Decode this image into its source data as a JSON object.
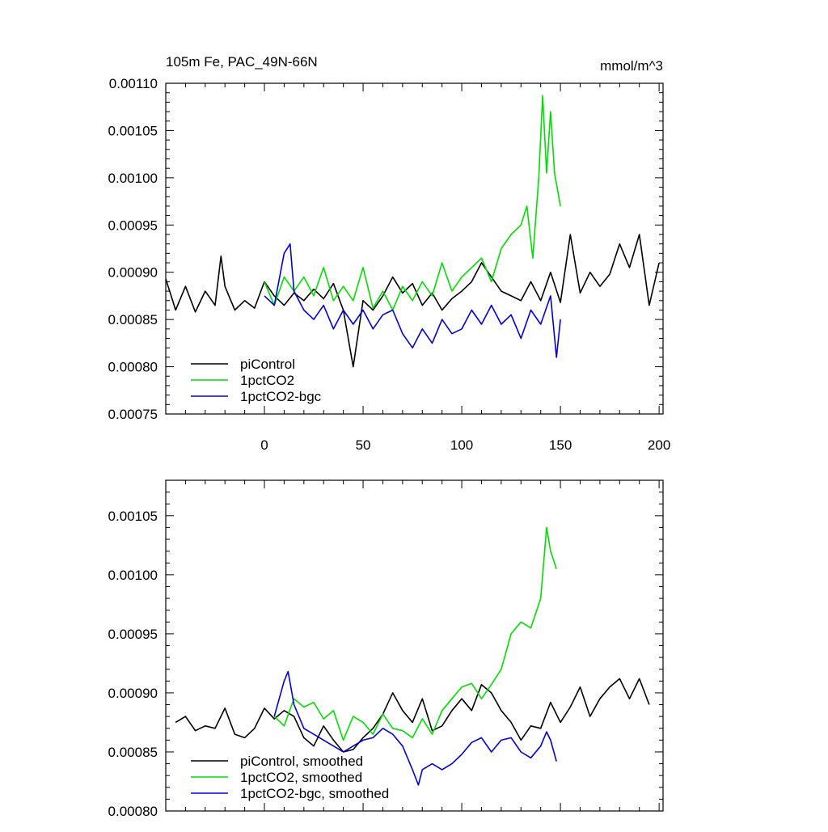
{
  "chart_data": [
    {
      "type": "line",
      "title": "105m Fe, PAC_49N-66N",
      "units": "mmol/m^3",
      "xlabel": "",
      "ylabel": "",
      "xlim": [
        -50,
        202
      ],
      "ylim": [
        0.00075,
        0.0011
      ],
      "xticks": [
        0,
        50,
        100,
        150,
        200
      ],
      "xtick_labels": [
        "0",
        "50",
        "100",
        "150",
        "200"
      ],
      "yticks": [
        0.00075,
        0.0008,
        0.00085,
        0.0009,
        0.00095,
        0.001,
        0.00105,
        0.0011
      ],
      "ytick_labels": [
        "0.00075",
        "0.00080",
        "0.00085",
        "0.00090",
        "0.00095",
        "0.00100",
        "0.00105",
        "0.00110"
      ],
      "legend_position": "bottom-left",
      "series": [
        {
          "name": "piControl",
          "color": "#000000",
          "x": [
            -50,
            -45,
            -40,
            -35,
            -30,
            -25,
            -22,
            -20,
            -15,
            -10,
            -5,
            0,
            5,
            10,
            15,
            20,
            25,
            30,
            35,
            40,
            45,
            50,
            55,
            60,
            65,
            70,
            75,
            80,
            85,
            90,
            95,
            100,
            105,
            110,
            115,
            120,
            125,
            130,
            135,
            140,
            145,
            150,
            155,
            160,
            165,
            170,
            175,
            180,
            185,
            190,
            195,
            200
          ],
          "y": [
            0.000893,
            0.00086,
            0.000885,
            0.000858,
            0.00088,
            0.000865,
            0.000917,
            0.000885,
            0.00086,
            0.00087,
            0.000862,
            0.00089,
            0.000875,
            0.000865,
            0.000878,
            0.00087,
            0.000882,
            0.000872,
            0.000888,
            0.00086,
            0.0008,
            0.00087,
            0.00086,
            0.000875,
            0.000895,
            0.000878,
            0.000888,
            0.000865,
            0.000878,
            0.00086,
            0.000872,
            0.00088,
            0.00089,
            0.00091,
            0.000895,
            0.00088,
            0.000875,
            0.00087,
            0.00089,
            0.00087,
            0.0009,
            0.000868,
            0.00094,
            0.000878,
            0.0009,
            0.000885,
            0.000898,
            0.00093,
            0.000905,
            0.00094,
            0.000865,
            0.00091
          ]
        },
        {
          "name": "1pctCO2",
          "color": "#00dd00",
          "x": [
            0,
            5,
            10,
            15,
            20,
            25,
            30,
            35,
            40,
            45,
            50,
            55,
            60,
            65,
            70,
            75,
            80,
            85,
            90,
            95,
            100,
            105,
            110,
            115,
            120,
            125,
            130,
            133,
            136,
            139,
            141,
            143,
            145,
            147,
            150
          ],
          "y": [
            0.00089,
            0.000865,
            0.000895,
            0.00088,
            0.000895,
            0.000875,
            0.000905,
            0.00087,
            0.000885,
            0.00087,
            0.000905,
            0.000862,
            0.00088,
            0.00086,
            0.000885,
            0.00087,
            0.00089,
            0.000875,
            0.00091,
            0.00088,
            0.000895,
            0.000905,
            0.000915,
            0.00089,
            0.000925,
            0.00094,
            0.00095,
            0.00097,
            0.000915,
            0.001,
            0.001087,
            0.001005,
            0.00107,
            0.001005,
            0.00097
          ]
        },
        {
          "name": "1pctCO2-bgc",
          "color": "#0000dd",
          "x": [
            0,
            5,
            10,
            13,
            15,
            20,
            25,
            30,
            35,
            40,
            45,
            50,
            55,
            60,
            65,
            70,
            75,
            80,
            85,
            90,
            95,
            100,
            105,
            110,
            115,
            120,
            125,
            130,
            135,
            140,
            145,
            148,
            150
          ],
          "y": [
            0.000875,
            0.000865,
            0.00092,
            0.00093,
            0.00088,
            0.00086,
            0.00085,
            0.000865,
            0.00084,
            0.00086,
            0.000845,
            0.00086,
            0.00084,
            0.000855,
            0.00086,
            0.000835,
            0.00082,
            0.00084,
            0.000825,
            0.00085,
            0.000835,
            0.00084,
            0.00086,
            0.000845,
            0.000865,
            0.000845,
            0.000855,
            0.00083,
            0.00086,
            0.000845,
            0.000875,
            0.00081,
            0.00085
          ]
        }
      ]
    },
    {
      "type": "line",
      "title": "",
      "xlabel": "",
      "ylabel": "",
      "xlim": [
        -50,
        202
      ],
      "ylim": [
        0.0008,
        0.00108
      ],
      "xticks": [
        0,
        50,
        100,
        150,
        200
      ],
      "yticks": [
        0.0008,
        0.00085,
        0.0009,
        0.00095,
        0.001,
        0.00105
      ],
      "ytick_labels": [
        "0.00080",
        "0.00085",
        "0.00090",
        "0.00095",
        "0.00100",
        "0.00105"
      ],
      "legend_position": "bottom-left",
      "series": [
        {
          "name": "piControl, smoothed",
          "color": "#000000",
          "x": [
            -45,
            -40,
            -35,
            -30,
            -25,
            -20,
            -15,
            -10,
            -5,
            0,
            5,
            10,
            15,
            20,
            25,
            30,
            35,
            40,
            45,
            50,
            55,
            60,
            65,
            70,
            75,
            80,
            85,
            90,
            95,
            100,
            105,
            110,
            115,
            120,
            125,
            130,
            135,
            140,
            145,
            150,
            155,
            160,
            165,
            170,
            175,
            180,
            185,
            190,
            195
          ],
          "y": [
            0.000875,
            0.00088,
            0.000868,
            0.000872,
            0.00087,
            0.000887,
            0.000865,
            0.000862,
            0.00087,
            0.000887,
            0.000878,
            0.000885,
            0.00088,
            0.000862,
            0.000855,
            0.000872,
            0.00086,
            0.00085,
            0.000852,
            0.000862,
            0.00087,
            0.000882,
            0.0009,
            0.000885,
            0.000875,
            0.000895,
            0.000868,
            0.000872,
            0.000885,
            0.000895,
            0.000885,
            0.000907,
            0.0009,
            0.000885,
            0.000875,
            0.00086,
            0.000872,
            0.00087,
            0.000892,
            0.000875,
            0.000888,
            0.000905,
            0.00088,
            0.000895,
            0.000905,
            0.000912,
            0.000895,
            0.000912,
            0.00089
          ]
        },
        {
          "name": "1pctCO2, smoothed",
          "color": "#00dd00",
          "x": [
            5,
            10,
            15,
            20,
            25,
            30,
            35,
            40,
            45,
            50,
            55,
            60,
            65,
            70,
            75,
            80,
            85,
            90,
            95,
            100,
            105,
            110,
            115,
            120,
            125,
            130,
            135,
            140,
            143,
            145,
            148
          ],
          "y": [
            0.00088,
            0.000872,
            0.000895,
            0.000888,
            0.000892,
            0.000878,
            0.000885,
            0.00086,
            0.00088,
            0.000875,
            0.000865,
            0.000882,
            0.00087,
            0.000868,
            0.000862,
            0.000878,
            0.000865,
            0.000885,
            0.000895,
            0.000905,
            0.000908,
            0.000895,
            0.000907,
            0.00092,
            0.00095,
            0.00096,
            0.000955,
            0.00098,
            0.00104,
            0.00102,
            0.001005
          ]
        },
        {
          "name": "1pctCO2-bgc, smoothed",
          "color": "#0000dd",
          "x": [
            5,
            10,
            12,
            15,
            20,
            25,
            30,
            35,
            40,
            45,
            50,
            55,
            60,
            65,
            70,
            75,
            78,
            80,
            85,
            90,
            95,
            100,
            105,
            110,
            115,
            120,
            125,
            130,
            135,
            140,
            143,
            145,
            148
          ],
          "y": [
            0.00088,
            0.00091,
            0.000918,
            0.00089,
            0.00087,
            0.000865,
            0.00086,
            0.000855,
            0.00085,
            0.000855,
            0.00086,
            0.000862,
            0.00087,
            0.000865,
            0.000855,
            0.000835,
            0.000822,
            0.000835,
            0.00084,
            0.000835,
            0.00084,
            0.000848,
            0.000858,
            0.000862,
            0.00085,
            0.00086,
            0.000862,
            0.00085,
            0.000845,
            0.000855,
            0.000867,
            0.00086,
            0.000842
          ]
        }
      ]
    }
  ]
}
